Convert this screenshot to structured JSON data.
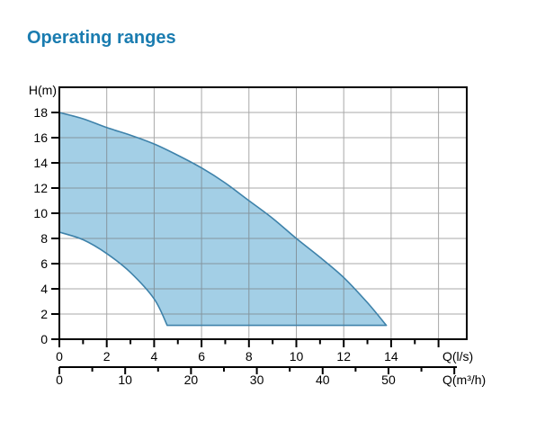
{
  "page_title": "Operating ranges",
  "colors": {
    "title_text": "#1a7cb0",
    "area_fill": "#a3cfe6",
    "area_stroke": "#3e82aa",
    "grid_line": "#707070",
    "axis": "#000000",
    "tick_text": "#000000",
    "background": "#ffffff"
  },
  "chart_data": {
    "type": "area",
    "title": "Operating ranges",
    "grid": true,
    "y_axis": {
      "label": "H(m)",
      "min": 0,
      "max": 20,
      "tick_labels": [
        0,
        2,
        4,
        6,
        8,
        10,
        12,
        14,
        16,
        18
      ],
      "gridline_step": 2
    },
    "x_axis_primary": {
      "label": "Q(l/s)",
      "min": 0,
      "max": 17.2,
      "tick_labels": [
        0,
        2,
        4,
        6,
        8,
        10,
        12,
        14
      ],
      "major_ticks": [
        0,
        2,
        4,
        6,
        8,
        10,
        12,
        14,
        16
      ],
      "minor_ticks": [
        1,
        3,
        5,
        7,
        9,
        11,
        13,
        15
      ],
      "gridlines_at": [
        2,
        4,
        6,
        8,
        10,
        12,
        14,
        16
      ]
    },
    "x_axis_secondary": {
      "label": "Q(m³/h)",
      "min": 0,
      "max": 60,
      "tick_labels": [
        0,
        10,
        20,
        30,
        40,
        50
      ],
      "major_ticks": [
        0,
        10,
        20,
        30,
        40,
        50,
        60
      ],
      "minor_ticks": [
        5,
        15,
        25,
        35,
        45,
        55
      ]
    },
    "area": {
      "name": "operating-range-envelope",
      "upper_boundary_QH": [
        [
          0,
          18
        ],
        [
          1,
          17.5
        ],
        [
          2,
          16.8
        ],
        [
          3,
          16.2
        ],
        [
          4,
          15.5
        ],
        [
          5,
          14.6
        ],
        [
          6,
          13.6
        ],
        [
          7,
          12.4
        ],
        [
          8,
          11.0
        ],
        [
          9,
          9.6
        ],
        [
          10,
          8.0
        ],
        [
          11,
          6.5
        ],
        [
          12,
          4.9
        ],
        [
          13,
          2.9
        ],
        [
          13.8,
          1.1
        ]
      ],
      "lower_boundary_QH": [
        [
          0,
          8.5
        ],
        [
          1,
          7.9
        ],
        [
          2,
          6.8
        ],
        [
          3,
          5.3
        ],
        [
          4,
          3.2
        ],
        [
          4.55,
          1.1
        ]
      ],
      "bottom_edge_H": 1.1,
      "bottom_edge_Q_range": [
        4.55,
        13.8
      ]
    }
  }
}
